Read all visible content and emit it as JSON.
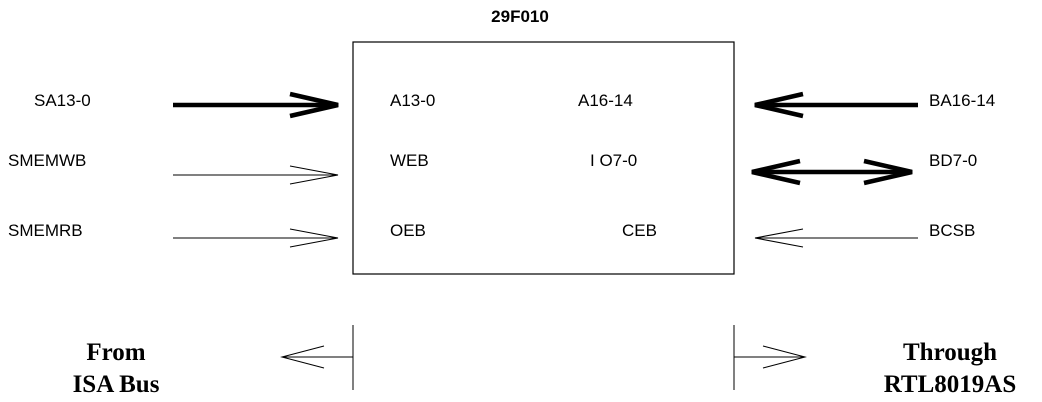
{
  "chip": {
    "title": "29F010",
    "pins": {
      "a13_0": "A13-0",
      "a16_14": "A16-14",
      "web": "WEB",
      "io7_0": "I O7-0",
      "oeb": "OEB",
      "ceb": "CEB"
    }
  },
  "signals": {
    "sa13_0": "SA13-0",
    "smemwb": "SMEMWB",
    "smemrb": "SMEMRB",
    "ba16_14": "BA16-14",
    "bd7_0": "BD7-0",
    "bcsb": "BCSB"
  },
  "legend": {
    "from_line1": "From",
    "from_line2": "ISA Bus",
    "through_line1": "Through",
    "through_line2": "RTL8019AS"
  }
}
